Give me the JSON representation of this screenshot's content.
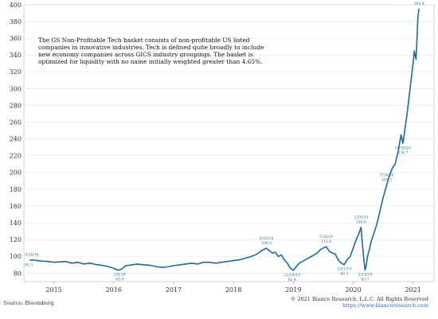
{
  "chart_data": {
    "type": "line",
    "title": "",
    "xlabel": "",
    "ylabel": "",
    "xlim": [
      2014.5,
      2021.35
    ],
    "ylim": [
      70,
      400
    ],
    "yticks": [
      80,
      100,
      120,
      140,
      160,
      180,
      200,
      220,
      240,
      260,
      280,
      300,
      320,
      340,
      360,
      380,
      400
    ],
    "xticks": [
      {
        "x": 2015.0,
        "label": "2015"
      },
      {
        "x": 2016.0,
        "label": "2016"
      },
      {
        "x": 2017.0,
        "label": "2017"
      },
      {
        "x": 2018.0,
        "label": "2018"
      },
      {
        "x": 2019.0,
        "label": "2019"
      },
      {
        "x": 2020.0,
        "label": "2020"
      },
      {
        "x": 2021.0,
        "label": "2021"
      }
    ],
    "grid": "horizontal",
    "line_color": "#1f6a9a",
    "series": [
      {
        "x": [
          2014.6,
          2014.65,
          2014.72,
          2014.8,
          2014.9,
          2015.0,
          2015.1,
          2015.2,
          2015.3,
          2015.4,
          2015.5,
          2015.6,
          2015.7,
          2015.8,
          2015.9,
          2016.0,
          2016.05,
          2016.1,
          2016.15,
          2016.2,
          2016.3,
          2016.4,
          2016.5,
          2016.6,
          2016.7,
          2016.8,
          2016.9,
          2017.0,
          2017.1,
          2017.2,
          2017.3,
          2017.4,
          2017.5,
          2017.6,
          2017.7,
          2017.8,
          2017.9,
          2018.0,
          2018.1,
          2018.2,
          2018.3,
          2018.4,
          2018.45,
          2018.5,
          2018.55,
          2018.6,
          2018.65,
          2018.7,
          2018.75,
          2018.8,
          2018.85,
          2018.9,
          2018.95,
          2019.0,
          2019.05,
          2019.1,
          2019.15,
          2019.2,
          2019.3,
          2019.4,
          2019.45,
          2019.5,
          2019.55,
          2019.6,
          2019.65,
          2019.7,
          2019.75,
          2019.8,
          2019.85,
          2019.9,
          2019.95,
          2020.0,
          2020.05,
          2020.1,
          2020.13,
          2020.15,
          2020.18,
          2020.2,
          2020.22,
          2020.24,
          2020.27,
          2020.3,
          2020.35,
          2020.4,
          2020.45,
          2020.5,
          2020.56,
          2020.6,
          2020.65,
          2020.7,
          2020.75,
          2020.8,
          2020.83,
          2020.86,
          2020.9,
          2020.95,
          2021.0,
          2021.02,
          2021.05,
          2021.07,
          2021.08,
          2021.1
        ],
        "y": [
          95.3,
          96,
          95,
          94.5,
          94,
          93,
          93.5,
          94,
          92,
          93,
          91,
          92,
          90.5,
          89.5,
          88,
          86,
          84,
          83.8,
          86,
          89,
          90,
          91,
          90,
          89.5,
          88,
          87,
          87.5,
          89,
          90,
          91,
          92,
          91,
          93,
          93,
          92,
          93,
          94,
          95,
          96,
          98,
          100,
          103,
          106,
          108,
          109.8,
          107,
          104,
          105,
          100,
          102,
          96,
          92,
          86,
          83.4,
          88,
          92,
          94,
          96,
          100,
          104,
          108,
          110,
          111.6,
          106,
          104,
          103,
          96,
          92,
          90.3,
          96,
          100,
          110,
          120,
          128,
          134.8,
          118,
          95,
          83.7,
          90,
          100,
          108,
          118,
          128,
          140,
          155,
          170,
          185.2,
          195,
          205,
          210,
          225,
          245,
          234.7,
          250,
          270,
          300,
          330,
          345,
          335,
          365,
          385,
          395.4
        ]
      }
    ],
    "annotations": [
      {
        "x": 2014.6,
        "y": 95.3,
        "date": "9/26/14",
        "value": "95.3",
        "pos": "left"
      },
      {
        "x": 2016.1,
        "y": 83.8,
        "date": "2/9/16",
        "value": "83.8",
        "pos": "below"
      },
      {
        "x": 2018.55,
        "y": 109.8,
        "date": "6/18/18",
        "value": "109.8",
        "pos": "above"
      },
      {
        "x": 2018.98,
        "y": 83.4,
        "date": "12/24/18",
        "value": "83.4",
        "pos": "below"
      },
      {
        "x": 2019.55,
        "y": 111.6,
        "date": "7/26/19",
        "value": "111.6",
        "pos": "above"
      },
      {
        "x": 2019.85,
        "y": 90.3,
        "date": "10/1/19",
        "value": "90.3",
        "pos": "below"
      },
      {
        "x": 2020.13,
        "y": 134.8,
        "date": "2/20/20",
        "value": "134.8",
        "pos": "above"
      },
      {
        "x": 2020.2,
        "y": 83.7,
        "date": "3/18/20",
        "value": "83.7",
        "pos": "below"
      },
      {
        "x": 2020.56,
        "y": 185.2,
        "date": "7/24/20",
        "value": "185.2",
        "pos": "above"
      },
      {
        "x": 2020.83,
        "y": 234.7,
        "date": "10/30/20",
        "value": "234.7",
        "pos": "below"
      },
      {
        "x": 2021.1,
        "y": 395.4,
        "date": "2/16/21",
        "value": "395.4",
        "pos": "above"
      }
    ]
  },
  "description_text": "The GS Non-Profitable Tech basket consists of non-profitable US listed companies in innovative industries. Tech is defined quite broadly to include new economy companies across GICS industry groupings. The basket is optimized for liquidity with no name initially weighted greater than 4.65%.",
  "source_label": "Source: Bloomberg",
  "copyright_line": "© 2021 Bianco Research, L.L.C. All Rights Reserved",
  "copyright_url": "https://www.biancoresearch.com"
}
